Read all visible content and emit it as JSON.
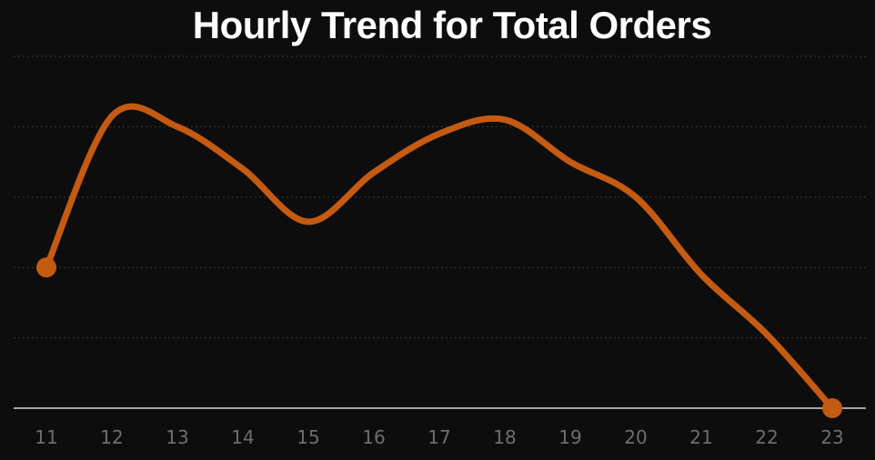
{
  "chart_data": {
    "type": "line",
    "title": "Hourly Trend for Total Orders",
    "xlabel": "",
    "ylabel": "",
    "x": [
      "11",
      "12",
      "13",
      "14",
      "15",
      "16",
      "17",
      "18",
      "19",
      "20",
      "21",
      "22",
      "23"
    ],
    "series": [
      {
        "values": [
          2000,
          4150,
          4000,
          3400,
          2650,
          3350,
          3900,
          4100,
          3500,
          3000,
          1900,
          1050,
          0
        ]
      }
    ],
    "ylim": [
      0,
      5000
    ],
    "grid": true,
    "smooth": true,
    "colors": {
      "line": "#c55a11",
      "background": "#0d0d0d",
      "grid": "#3a3a3a",
      "axis": "#d9d9d9",
      "tick": "#6e6e6e"
    }
  }
}
